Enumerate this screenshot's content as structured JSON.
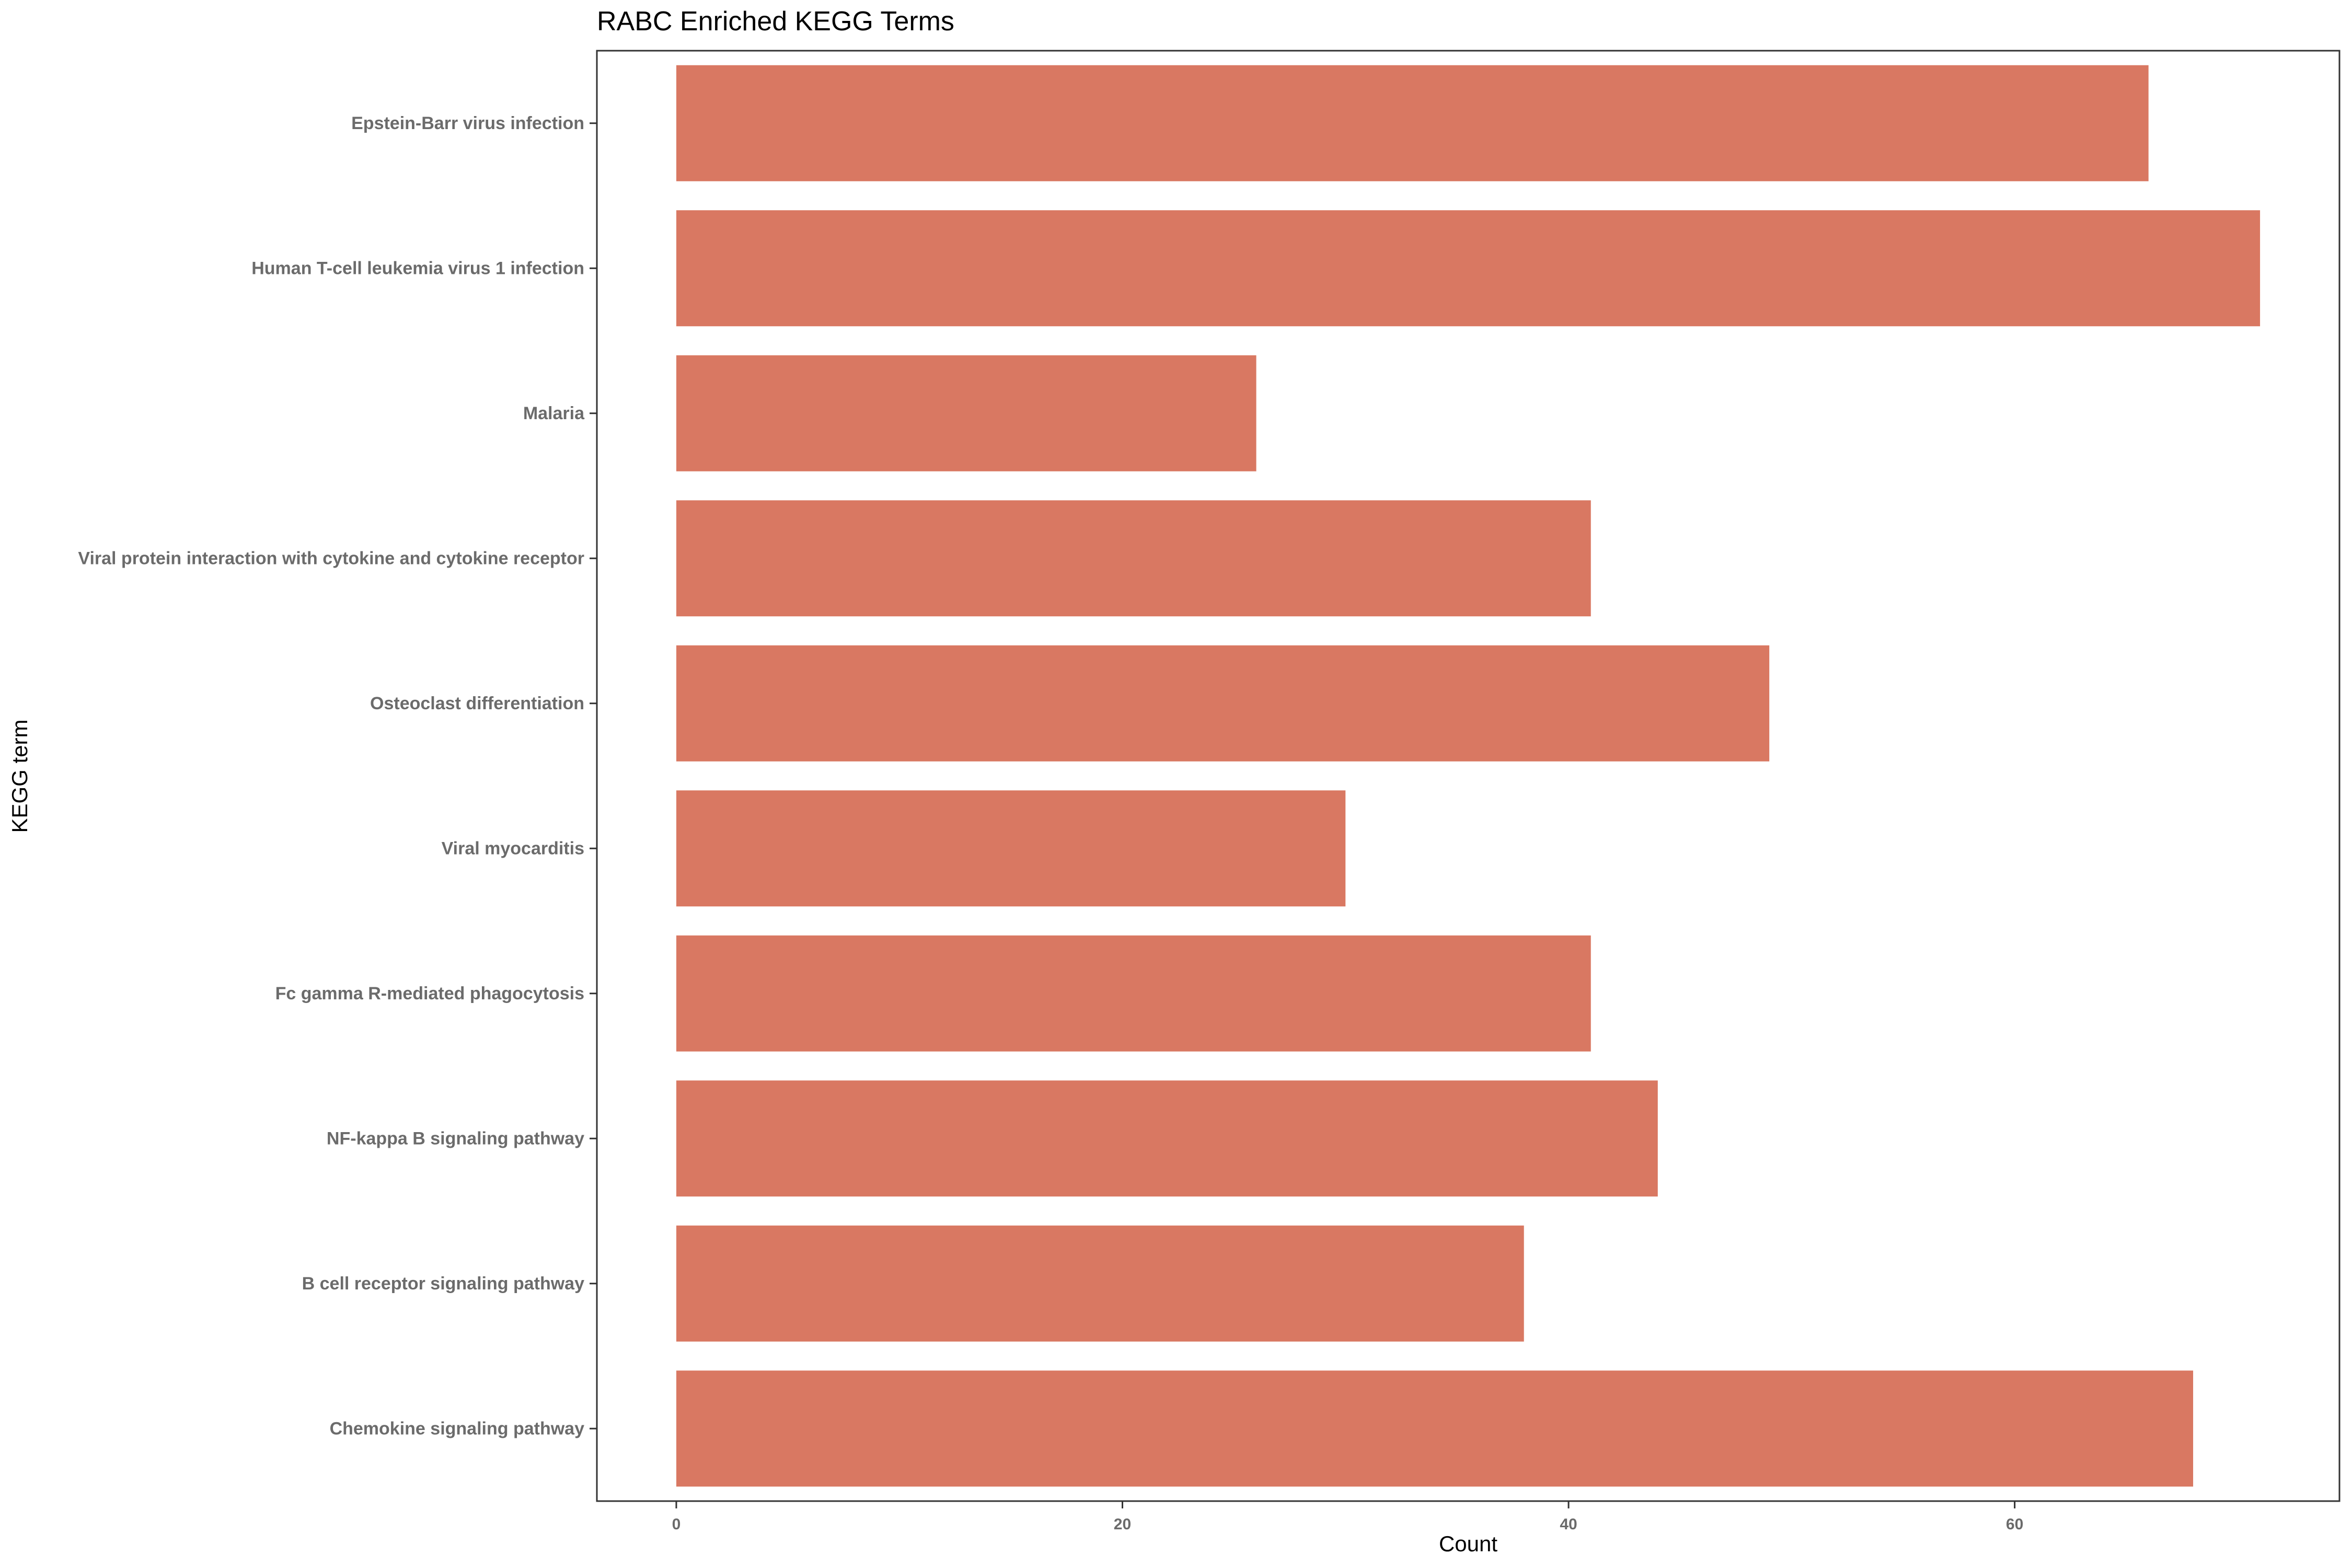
{
  "chart_data": {
    "type": "bar",
    "orientation": "horizontal",
    "title": "RABC Enriched KEGG Terms",
    "xlabel": "Count",
    "ylabel": "KEGG term",
    "categories": [
      "Epstein-Barr virus infection",
      "Human T-cell leukemia virus 1 infection",
      "Malaria",
      "Viral protein interaction with cytokine and cytokine receptor",
      "Osteoclast differentiation",
      "Viral myocarditis",
      "Fc gamma R-mediated phagocytosis",
      "NF-kappa B signaling pathway",
      "B cell receptor signaling pathway",
      "Chemokine signaling pathway"
    ],
    "values": [
      66,
      71,
      26,
      41,
      49,
      30,
      41,
      44,
      38,
      68
    ],
    "xlim": [
      -3.56,
      74.56
    ],
    "xticks": [
      0,
      20,
      40,
      60
    ],
    "xtick_labels": [
      "0",
      "20",
      "40",
      "60"
    ],
    "grid": false,
    "legend": "none",
    "colors": {
      "bar": "#D97862",
      "panel_border": "#333333",
      "tick_label": "#6b6b6b",
      "text": "#000000"
    }
  }
}
